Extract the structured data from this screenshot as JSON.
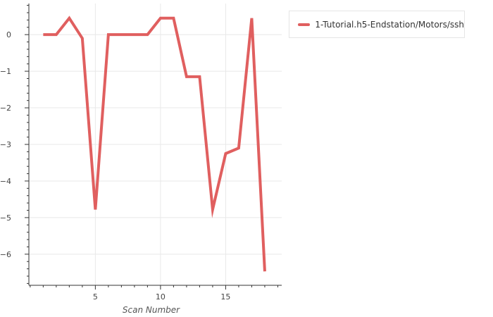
{
  "chart_data": {
    "type": "line",
    "title": "",
    "xlabel": "Scan Number",
    "ylabel": "",
    "x": [
      1,
      2,
      3,
      4,
      5,
      6,
      7,
      8,
      9,
      10,
      11,
      12,
      13,
      14,
      15,
      16,
      17,
      18
    ],
    "series": [
      {
        "name": "1-Tutorial.h5-Endstation/Motors/ssh",
        "values": [
          0,
          0,
          0.45,
          -0.1,
          -4.78,
          0,
          0,
          0,
          0,
          0.45,
          0.45,
          -1.15,
          -1.15,
          -4.78,
          -3.25,
          -3.1,
          0.45,
          -6.47
        ]
      }
    ],
    "xlim": [
      -0.1,
      19.3
    ],
    "ylim": [
      -6.85,
      0.85
    ],
    "xticks": [
      5,
      10,
      15
    ],
    "yticks": [
      0,
      -1,
      -2,
      -3,
      -4,
      -5,
      -6
    ],
    "ytick_labels": [
      "0",
      "−1",
      "−2",
      "−3",
      "−4",
      "−5",
      "−6"
    ],
    "grid": true,
    "legend_position": "right",
    "colors": {
      "line": "#e05f5f",
      "grid": "#e8e8e8",
      "axis": "#333333"
    }
  }
}
